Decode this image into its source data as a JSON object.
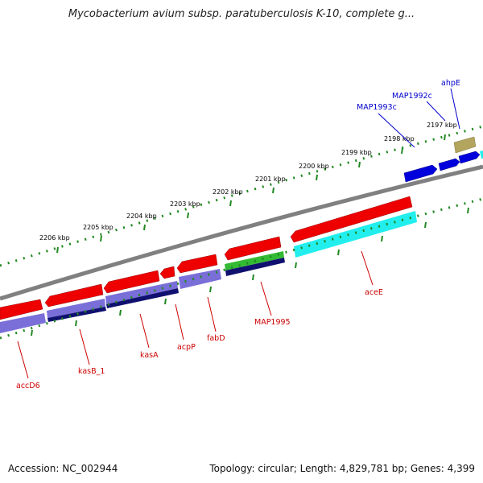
{
  "title": "Mycobacterium avium subsp. paratuberculosis K-10, complete g...",
  "footer": {
    "accession": "Accession: NC_002944",
    "topology": "Topology: circular; Length: 4,829,781 bp; Genes: 4,399"
  },
  "ruler_labels": [
    "2206 kbp",
    "2205 kbp",
    "2204 kbp",
    "2203 kbp",
    "2202 kbp",
    "2201 kbp",
    "2200 kbp",
    "2199 kbp",
    "2198 kbp",
    "2197 kbp"
  ],
  "genes_reverse": [
    "accD6",
    "kasB_1",
    "kasA",
    "acpP",
    "fabD",
    "MAP1995",
    "aceE"
  ],
  "genes_forward": [
    "MAP1993c",
    "MAP1992c",
    "ahpE"
  ],
  "colors": {
    "reverse_label": "#cc0000",
    "forward_label": "#0000cc",
    "tick": "#228822",
    "backbone": "#808080",
    "cds_red": "#ee0000",
    "cds_purple": "#7a6fd8",
    "cds_navy": "#101070",
    "cds_green": "#33bb33",
    "cds_cyan": "#22eeee",
    "cds_blue": "#0000dd",
    "cds_khaki": "#b3a45e"
  }
}
